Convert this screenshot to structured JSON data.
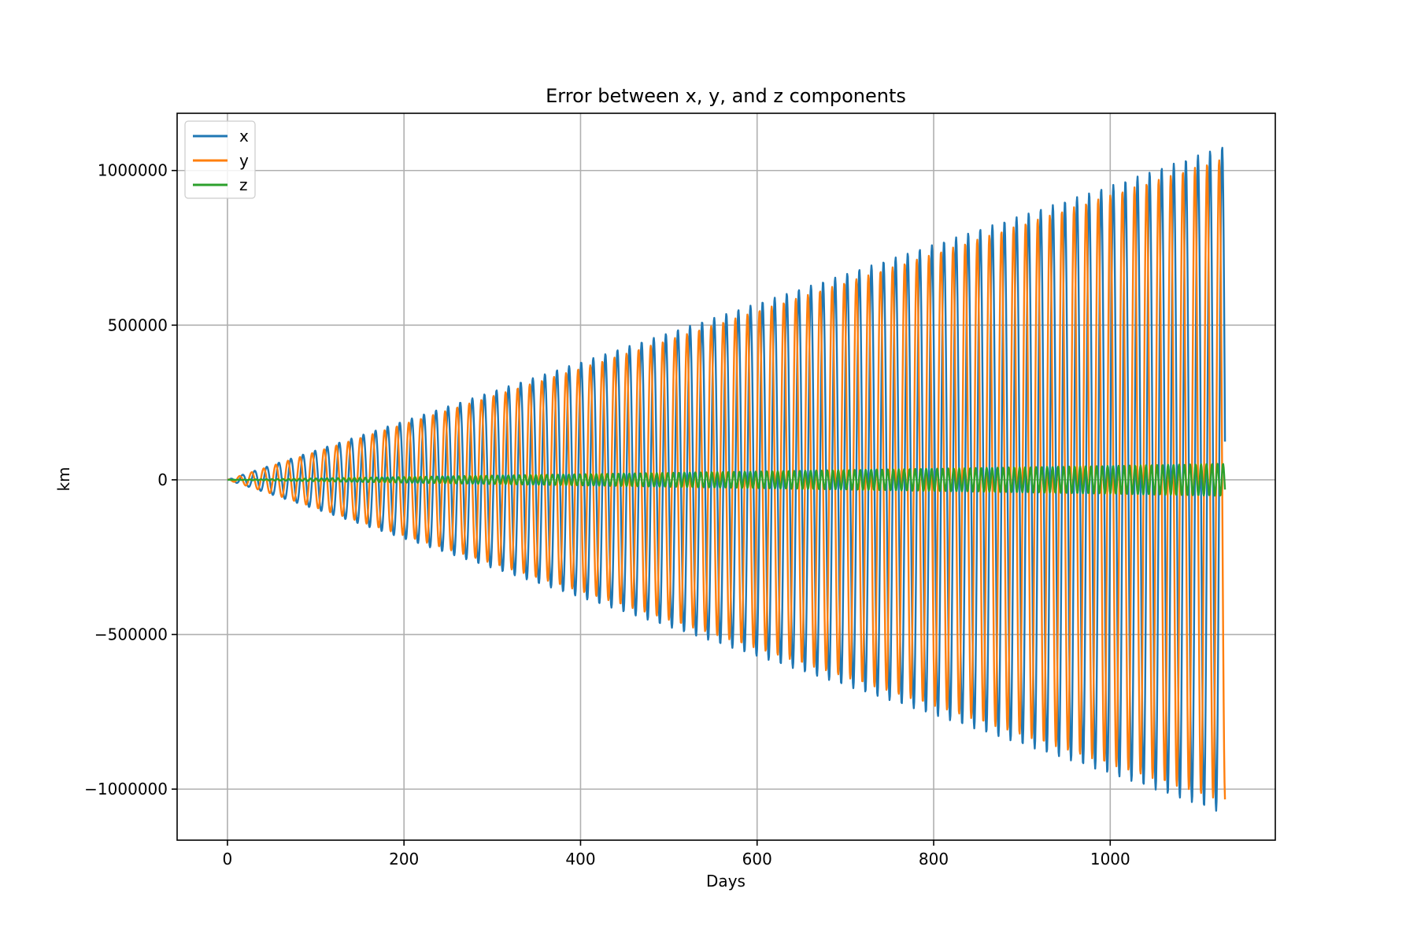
{
  "chart_data": {
    "type": "line",
    "title": "Error between x, y, and z components",
    "xlabel": "Days",
    "ylabel": "km",
    "xlim": [
      -57,
      1187
    ],
    "ylim": [
      -1165000,
      1185000
    ],
    "xticks": [
      0,
      200,
      400,
      600,
      800,
      1000
    ],
    "xtick_labels": [
      "0",
      "200",
      "400",
      "600",
      "800",
      "1000"
    ],
    "yticks": [
      -1000000,
      -500000,
      0,
      500000,
      1000000
    ],
    "ytick_labels": [
      "−1000000",
      "−500000",
      "0",
      "500000",
      "1000000"
    ],
    "grid": true,
    "legend_position": "upper-left",
    "x_range": [
      0,
      1130
    ],
    "series": [
      {
        "name": "x",
        "color": "#1f77b4",
        "amplitude_km": [
          [
            0,
            0
          ],
          [
            200,
            190000
          ],
          [
            400,
            380000
          ],
          [
            600,
            570000
          ],
          [
            800,
            760000
          ],
          [
            1000,
            950000
          ],
          [
            1130,
            1080000
          ]
        ]
      },
      {
        "name": "y",
        "color": "#ff7f0e",
        "amplitude_km": [
          [
            0,
            0
          ],
          [
            200,
            180000
          ],
          [
            400,
            360000
          ],
          [
            600,
            545000
          ],
          [
            800,
            730000
          ],
          [
            1000,
            920000
          ],
          [
            1130,
            1040000
          ]
        ]
      },
      {
        "name": "z",
        "color": "#2ca02c",
        "amplitude_km": [
          [
            0,
            0
          ],
          [
            200,
            9000
          ],
          [
            400,
            18000
          ],
          [
            600,
            27000
          ],
          [
            800,
            36000
          ],
          [
            1000,
            45000
          ],
          [
            1130,
            52000
          ]
        ]
      }
    ]
  }
}
